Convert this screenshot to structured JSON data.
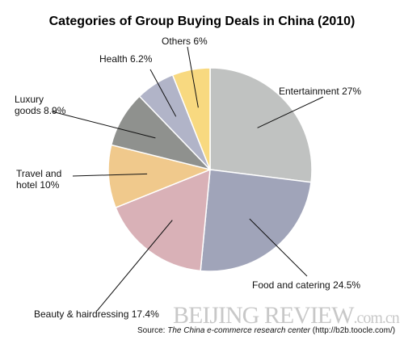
{
  "chart_data": {
    "type": "pie",
    "title": "Categories of Group Buying Deals in China (2010)",
    "categories": [
      "Entertainment",
      "Food and catering",
      "Beauty & hairdressing",
      "Travel and hotel",
      "Luxury goods",
      "Health",
      "Others"
    ],
    "values": [
      27,
      24.5,
      17.4,
      10,
      8.9,
      6.2,
      6
    ],
    "value_labels": [
      "27%",
      "24.5%",
      "17.4%",
      "10%",
      "8.9%",
      "6.2%",
      "6%"
    ],
    "colors": [
      "#c0c2c1",
      "#a0a4b9",
      "#d9b1b7",
      "#f0c98c",
      "#8f918e",
      "#b1b4c8",
      "#f8d980"
    ]
  },
  "source": {
    "prefix": "Source:",
    "name": "The China e-commerce research center",
    "url": "(http://b2b.toocle.com/)"
  },
  "watermark": {
    "main": "BEIJING REVIEW",
    "suffix": ".com.cn"
  }
}
